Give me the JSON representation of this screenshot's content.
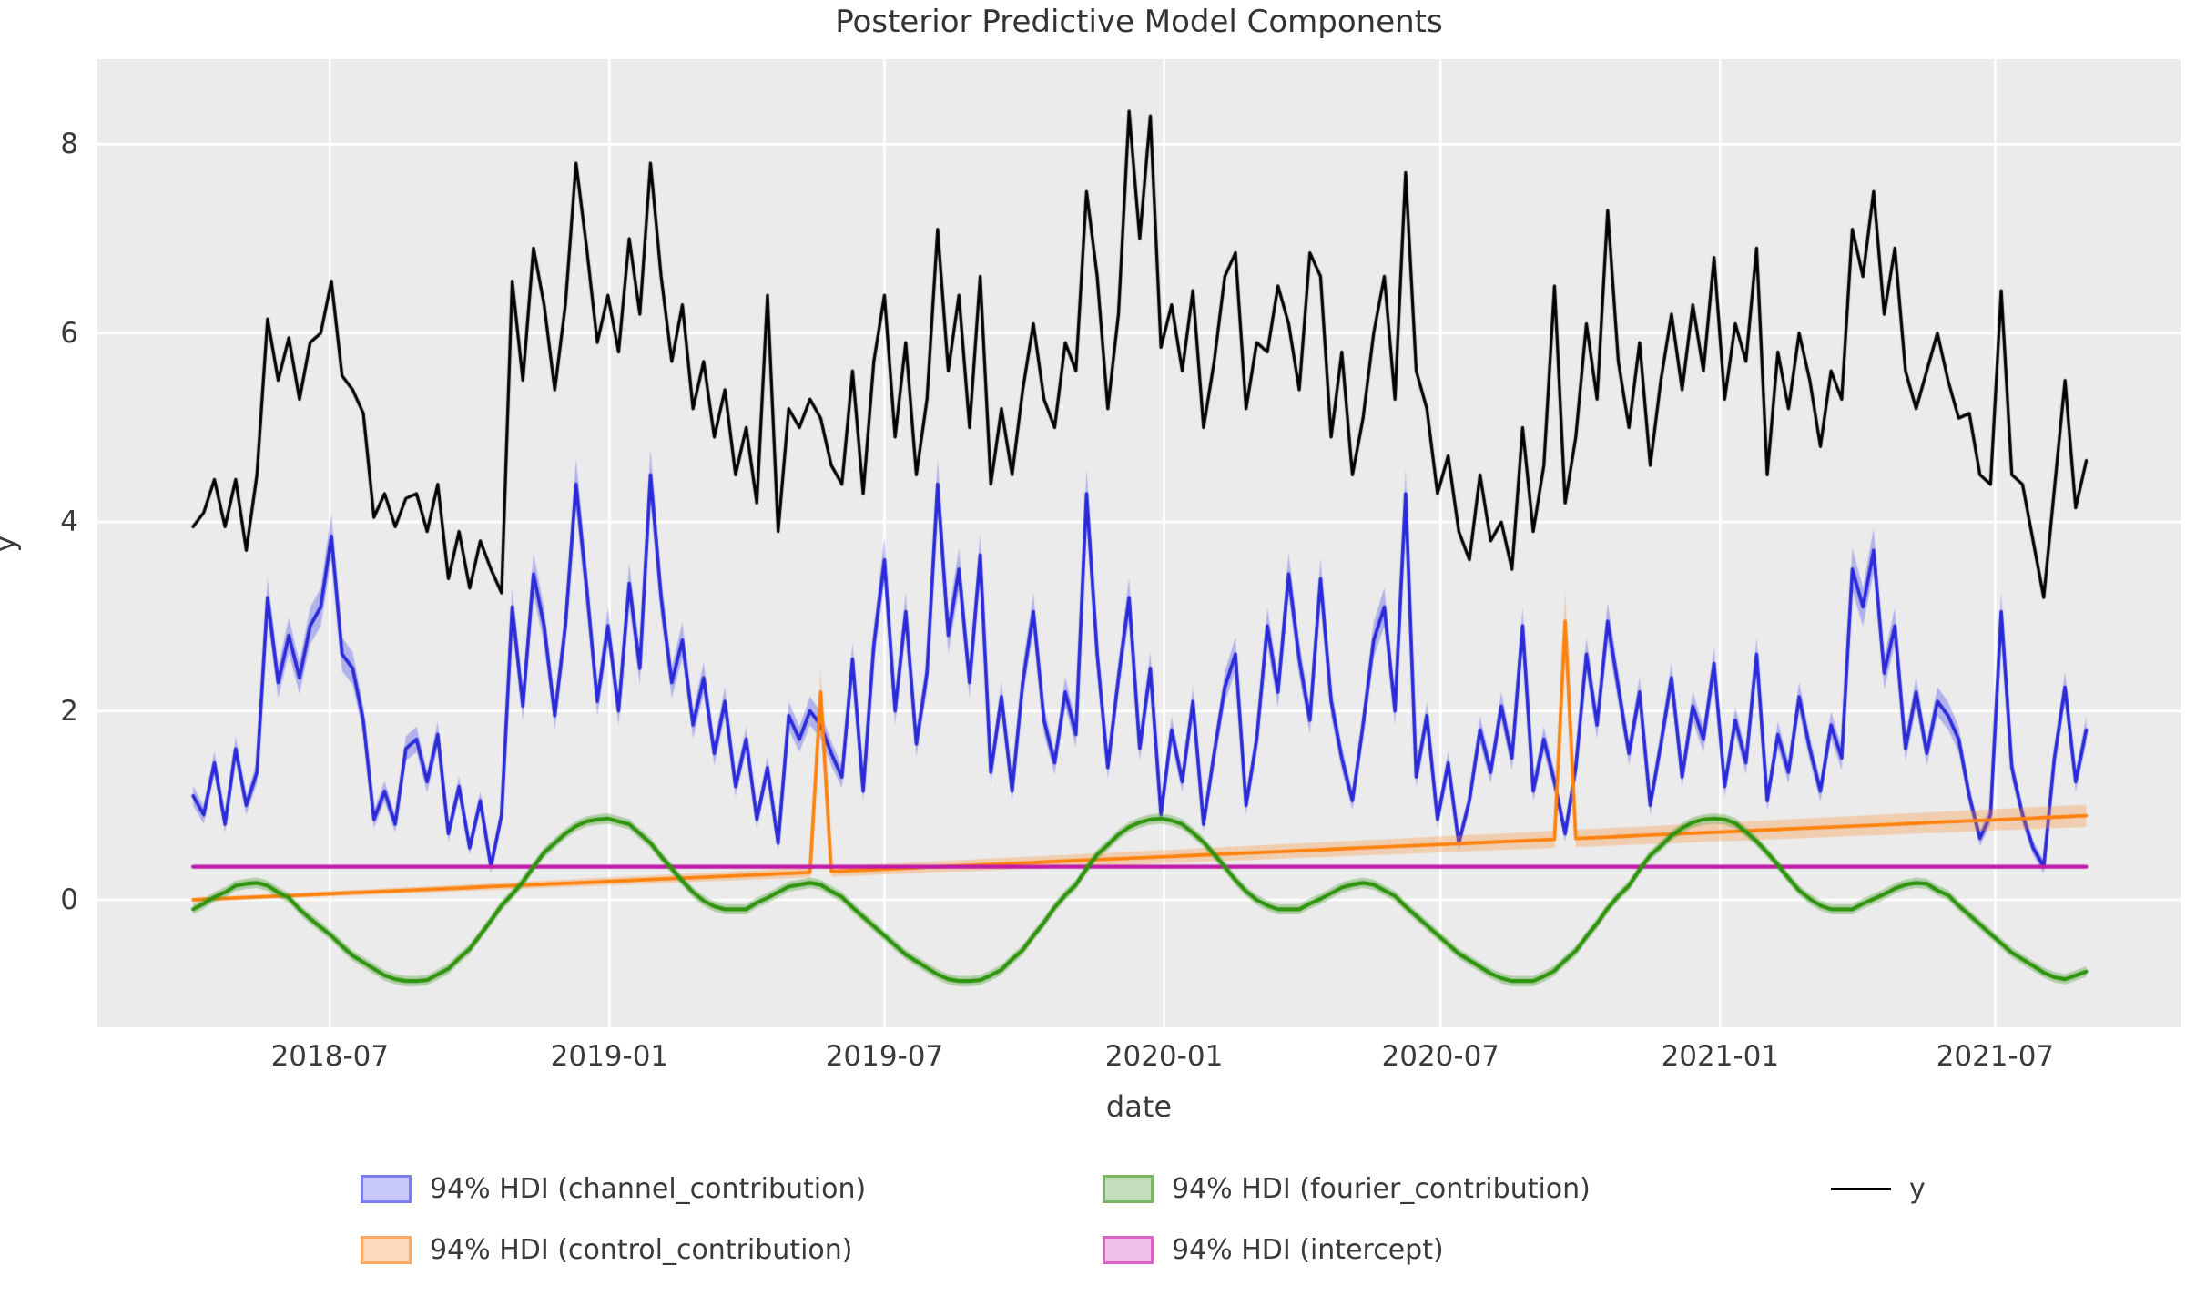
{
  "colors": {
    "background": "#ffffff",
    "plot_background": "#ebebeb",
    "grid": "#ffffff",
    "text": "#3a3a3a",
    "y_line": "#000000",
    "channel_line": "#2a2ad8",
    "control_line": "#fd810d",
    "fourier_line": "#2e930d",
    "intercept_line": "#c019a7"
  },
  "legend": {
    "items": [
      {
        "label": "94% HDI (channel_contribution)",
        "type": "patch",
        "fill": "rgba(60,60,235,0.28)",
        "edge": "rgba(60,60,235,0.55)"
      },
      {
        "label": "94% HDI (fourier_contribution)",
        "type": "patch",
        "fill": "rgba(60,150,30,0.3)",
        "edge": "rgba(60,150,30,0.55)"
      },
      {
        "label": "y",
        "type": "line",
        "color": "#000000"
      },
      {
        "label": "94% HDI (control_contribution)",
        "type": "patch",
        "fill": "rgba(253,135,35,0.3)",
        "edge": "rgba(253,135,35,0.6)"
      },
      {
        "label": "94% HDI (intercept)",
        "type": "patch",
        "fill": "rgba(200,25,170,0.28)",
        "edge": "rgba(200,25,170,0.55)"
      }
    ]
  },
  "chart_data": {
    "type": "line",
    "title": "Posterior Predictive Model Components",
    "xlabel": "date",
    "ylabel": "y",
    "grid": true,
    "legend_position": "below",
    "x_start": "2018-04-02",
    "x_step_days": 7,
    "n_points": 179,
    "x_offset_days": 63,
    "x_total_days": 1371,
    "ylim": [
      -1.35,
      8.9
    ],
    "yticks": [
      0,
      2,
      4,
      6,
      8
    ],
    "xticks": [
      {
        "label": "2018-07",
        "day": 90
      },
      {
        "label": "2019-01",
        "day": 274
      },
      {
        "label": "2019-07",
        "day": 455
      },
      {
        "label": "2020-01",
        "day": 639
      },
      {
        "label": "2020-07",
        "day": 821
      },
      {
        "label": "2021-01",
        "day": 1005
      },
      {
        "label": "2021-07",
        "day": 1186
      }
    ],
    "series": [
      {
        "name": "channel_contribution",
        "color": "#2a2ad8",
        "line_width": 3.8,
        "band_color": "rgba(60,60,235,0.32)",
        "hdi": {
          "base": 0.05,
          "rel": 0.05
        },
        "values": [
          1.1,
          0.9,
          1.45,
          0.8,
          1.6,
          1.0,
          1.35,
          3.2,
          2.3,
          2.8,
          2.35,
          2.9,
          3.1,
          3.85,
          2.6,
          2.45,
          1.9,
          0.85,
          1.15,
          0.8,
          1.6,
          1.7,
          1.25,
          1.75,
          0.7,
          1.2,
          0.55,
          1.05,
          0.35,
          0.9,
          3.1,
          2.05,
          3.45,
          2.9,
          1.95,
          2.9,
          4.4,
          3.3,
          2.1,
          2.9,
          2.0,
          3.35,
          2.45,
          4.5,
          3.2,
          2.3,
          2.75,
          1.85,
          2.35,
          1.55,
          2.1,
          1.2,
          1.7,
          0.85,
          1.4,
          0.6,
          1.95,
          1.7,
          2.0,
          1.85,
          1.55,
          1.3,
          2.55,
          1.15,
          2.7,
          3.6,
          2.0,
          3.05,
          1.65,
          2.4,
          4.4,
          2.8,
          3.5,
          2.3,
          3.65,
          1.35,
          2.15,
          1.15,
          2.3,
          3.05,
          1.9,
          1.45,
          2.2,
          1.75,
          4.3,
          2.6,
          1.4,
          2.35,
          3.2,
          1.6,
          2.45,
          0.9,
          1.8,
          1.25,
          2.1,
          0.8,
          1.55,
          2.25,
          2.6,
          1.0,
          1.7,
          2.9,
          2.2,
          3.45,
          2.55,
          1.9,
          3.4,
          2.1,
          1.5,
          1.05,
          1.85,
          2.75,
          3.1,
          2.0,
          4.3,
          1.3,
          1.95,
          0.85,
          1.45,
          0.6,
          1.05,
          1.8,
          1.35,
          2.05,
          1.5,
          2.9,
          1.15,
          1.7,
          1.25,
          0.7,
          1.4,
          2.6,
          1.85,
          2.95,
          2.25,
          1.55,
          2.2,
          1.0,
          1.65,
          2.35,
          1.3,
          2.05,
          1.7,
          2.5,
          1.2,
          1.9,
          1.45,
          2.6,
          1.05,
          1.75,
          1.35,
          2.15,
          1.6,
          1.15,
          1.85,
          1.5,
          3.5,
          3.1,
          3.7,
          2.4,
          2.9,
          1.6,
          2.2,
          1.55,
          2.1,
          1.95,
          1.7,
          1.1,
          0.65,
          0.9,
          3.05,
          1.4,
          0.9,
          0.55,
          0.35,
          1.5,
          2.25,
          1.25,
          1.8
        ]
      },
      {
        "name": "control_contribution",
        "color": "#fd810d",
        "line_width": 3.8,
        "band_color": "rgba(253,135,35,0.3)",
        "hdi": {
          "base": 0.02,
          "rel": 0.11
        },
        "values": [
          0,
          0.005,
          0.01,
          0.015,
          0.02,
          0.025,
          0.03,
          0.035,
          0.04,
          0.045,
          0.05,
          0.055,
          0.06,
          0.065,
          0.07,
          0.075,
          0.08,
          0.085,
          0.09,
          0.095,
          0.1,
          0.105,
          0.11,
          0.115,
          0.12,
          0.125,
          0.13,
          0.135,
          0.14,
          0.145,
          0.15,
          0.155,
          0.16,
          0.165,
          0.17,
          0.175,
          0.18,
          0.185,
          0.19,
          0.195,
          0.2,
          0.205,
          0.21,
          0.215,
          0.22,
          0.225,
          0.23,
          0.235,
          0.24,
          0.245,
          0.25,
          0.255,
          0.26,
          0.265,
          0.27,
          0.275,
          0.28,
          0.285,
          0.29,
          2.2,
          0.3,
          0.305,
          0.31,
          0.315,
          0.32,
          0.325,
          0.33,
          0.335,
          0.34,
          0.345,
          0.35,
          0.355,
          0.36,
          0.365,
          0.37,
          0.375,
          0.38,
          0.385,
          0.39,
          0.395,
          0.4,
          0.405,
          0.41,
          0.415,
          0.42,
          0.425,
          0.43,
          0.435,
          0.44,
          0.445,
          0.45,
          0.455,
          0.46,
          0.465,
          0.47,
          0.475,
          0.48,
          0.485,
          0.49,
          0.495,
          0.5,
          0.505,
          0.51,
          0.515,
          0.52,
          0.525,
          0.53,
          0.535,
          0.54,
          0.545,
          0.55,
          0.555,
          0.56,
          0.565,
          0.57,
          0.575,
          0.58,
          0.585,
          0.59,
          0.595,
          0.6,
          0.605,
          0.61,
          0.615,
          0.62,
          0.625,
          0.63,
          0.635,
          0.64,
          2.95,
          0.65,
          0.655,
          0.66,
          0.665,
          0.67,
          0.675,
          0.68,
          0.685,
          0.69,
          0.695,
          0.7,
          0.705,
          0.71,
          0.715,
          0.72,
          0.725,
          0.73,
          0.735,
          0.74,
          0.745,
          0.75,
          0.755,
          0.76,
          0.765,
          0.77,
          0.775,
          0.78,
          0.785,
          0.79,
          0.795,
          0.8,
          0.805,
          0.81,
          0.815,
          0.82,
          0.825,
          0.83,
          0.835,
          0.84,
          0.845,
          0.85,
          0.855,
          0.86,
          0.865,
          0.87,
          0.875,
          0.88,
          0.885,
          0.89
        ]
      },
      {
        "name": "intercept",
        "color": "#c019a7",
        "line_width": 4.2,
        "band_color": "rgba(200,25,170,0.3)",
        "hdi": {
          "base": 0.018,
          "rel": 0
        },
        "const": 0.35
      },
      {
        "name": "fourier_contribution",
        "color": "#2e930d",
        "line_width": 4.2,
        "band_color": "rgba(60,150,30,0.33)",
        "hdi": {
          "base": 0.055,
          "rel": 0
        },
        "values": [
          -0.1,
          -0.04,
          0.03,
          0.08,
          0.15,
          0.17,
          0.18,
          0.15,
          0.08,
          0.02,
          -0.1,
          -0.2,
          -0.29,
          -0.38,
          -0.49,
          -0.59,
          -0.66,
          -0.73,
          -0.8,
          -0.84,
          -0.86,
          -0.86,
          -0.85,
          -0.79,
          -0.73,
          -0.62,
          -0.52,
          -0.37,
          -0.22,
          -0.06,
          0.06,
          0.19,
          0.35,
          0.5,
          0.6,
          0.7,
          0.78,
          0.83,
          0.85,
          0.86,
          0.83,
          0.8,
          0.7,
          0.6,
          0.46,
          0.33,
          0.2,
          0.08,
          -0.01,
          -0.07,
          -0.1,
          -0.1,
          -0.1,
          -0.03,
          0.02,
          0.08,
          0.14,
          0.16,
          0.18,
          0.16,
          0.09,
          0.03,
          -0.08,
          -0.18,
          -0.28,
          -0.38,
          -0.48,
          -0.58,
          -0.65,
          -0.72,
          -0.79,
          -0.84,
          -0.86,
          -0.86,
          -0.85,
          -0.8,
          -0.74,
          -0.63,
          -0.53,
          -0.38,
          -0.24,
          -0.08,
          0.05,
          0.16,
          0.33,
          0.48,
          0.58,
          0.69,
          0.77,
          0.82,
          0.85,
          0.86,
          0.84,
          0.8,
          0.71,
          0.61,
          0.48,
          0.35,
          0.21,
          0.09,
          0.0,
          -0.06,
          -0.1,
          -0.1,
          -0.1,
          -0.04,
          0.01,
          0.07,
          0.13,
          0.16,
          0.18,
          0.16,
          0.1,
          0.04,
          -0.07,
          -0.17,
          -0.27,
          -0.37,
          -0.47,
          -0.57,
          -0.64,
          -0.71,
          -0.78,
          -0.83,
          -0.86,
          -0.86,
          -0.86,
          -0.81,
          -0.75,
          -0.64,
          -0.54,
          -0.39,
          -0.25,
          -0.09,
          0.04,
          0.15,
          0.32,
          0.47,
          0.57,
          0.68,
          0.76,
          0.82,
          0.85,
          0.86,
          0.85,
          0.81,
          0.72,
          0.62,
          0.5,
          0.37,
          0.23,
          0.1,
          0.01,
          -0.06,
          -0.1,
          -0.1,
          -0.1,
          -0.04,
          0.01,
          0.06,
          0.12,
          0.16,
          0.18,
          0.17,
          0.1,
          0.05,
          -0.06,
          -0.16,
          -0.26,
          -0.36,
          -0.46,
          -0.56,
          -0.63,
          -0.7,
          -0.77,
          -0.82,
          -0.84,
          -0.8,
          -0.76
        ]
      },
      {
        "name": "y",
        "color": "#000000",
        "line_width": 3.4,
        "values": [
          3.95,
          4.1,
          4.45,
          3.95,
          4.45,
          3.7,
          4.5,
          6.15,
          5.5,
          5.95,
          5.3,
          5.9,
          6.0,
          6.55,
          5.55,
          5.4,
          5.15,
          4.05,
          4.3,
          3.95,
          4.25,
          4.3,
          3.9,
          4.4,
          3.4,
          3.9,
          3.3,
          3.8,
          3.5,
          3.25,
          6.55,
          5.5,
          6.9,
          6.3,
          5.4,
          6.3,
          7.8,
          6.9,
          5.9,
          6.4,
          5.8,
          7.0,
          6.2,
          7.8,
          6.6,
          5.7,
          6.3,
          5.2,
          5.7,
          4.9,
          5.4,
          4.5,
          5.0,
          4.2,
          6.4,
          3.9,
          5.2,
          5.0,
          5.3,
          5.1,
          4.6,
          4.4,
          5.6,
          4.3,
          5.7,
          6.4,
          4.9,
          5.9,
          4.5,
          5.3,
          7.1,
          5.6,
          6.4,
          5.0,
          6.6,
          4.4,
          5.2,
          4.5,
          5.4,
          6.1,
          5.3,
          5.0,
          5.9,
          5.6,
          7.5,
          6.6,
          5.2,
          6.2,
          8.35,
          7.0,
          8.3,
          5.85,
          6.3,
          5.6,
          6.45,
          5.0,
          5.7,
          6.6,
          6.85,
          5.2,
          5.9,
          5.8,
          6.5,
          6.1,
          5.4,
          6.85,
          6.6,
          4.9,
          5.8,
          4.5,
          5.1,
          6.0,
          6.6,
          5.3,
          7.7,
          5.6,
          5.2,
          4.3,
          4.7,
          3.9,
          3.6,
          4.5,
          3.8,
          4.0,
          3.5,
          5.0,
          3.9,
          4.6,
          6.5,
          4.2,
          4.9,
          6.1,
          5.3,
          7.3,
          5.7,
          5.0,
          5.9,
          4.6,
          5.5,
          6.2,
          5.4,
          6.3,
          5.6,
          6.8,
          5.3,
          6.1,
          5.7,
          6.9,
          4.5,
          5.8,
          5.2,
          6.0,
          5.5,
          4.8,
          5.6,
          5.3,
          7.1,
          6.6,
          7.5,
          6.2,
          6.9,
          5.6,
          5.2,
          5.6,
          6.0,
          5.5,
          5.1,
          5.15,
          4.5,
          4.4,
          6.45,
          4.5,
          4.4,
          3.8,
          3.2,
          4.35,
          5.5,
          4.15,
          4.65
        ]
      }
    ]
  }
}
